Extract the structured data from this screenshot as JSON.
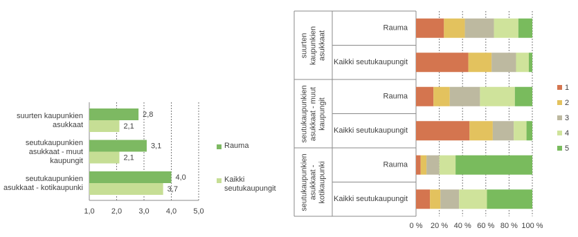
{
  "chart_data": [
    {
      "type": "hbar",
      "categories": [
        "suurten kaupunkien asukkaat",
        "seutukaupunkien asukkaat - muut kaupungit",
        "seutukaupunkien asukkaat - kotikaupunki"
      ],
      "series": [
        {
          "name": "Rauma",
          "color": "#7db962",
          "values": [
            2.8,
            3.1,
            4.0
          ],
          "value_labels": [
            "2,8",
            "3,1",
            "4,0"
          ]
        },
        {
          "name": "Kaikki seutukaupungit",
          "color": "#c6de95",
          "values": [
            2.1,
            2.1,
            3.7
          ],
          "value_labels": [
            "2,1",
            "2,1",
            "3,7"
          ]
        }
      ],
      "xlim": [
        1,
        5
      ],
      "xticks": [
        {
          "value": 1,
          "label": "1,0"
        },
        {
          "value": 2,
          "label": "2,0"
        },
        {
          "value": 3,
          "label": "3,0"
        },
        {
          "value": 4,
          "label": "4,0"
        },
        {
          "value": 5,
          "label": "5,0"
        }
      ],
      "grid": true,
      "legend": "right"
    },
    {
      "type": "stacked-hbar",
      "groups": [
        "suurten kaupunkien asukkaat",
        "seutukaupunkien asukkaat - muut kaupungit",
        "seutukaupunkien asukkaat - kotikaupunki"
      ],
      "categories": [
        "Rauma",
        "Kaikki seutukaupungit",
        "Rauma",
        "Kaikki seutukaupungit",
        "Rauma",
        "Kaikki seutukaupungit"
      ],
      "series": [
        {
          "name": "1",
          "color": "#d4754f",
          "values": [
            24,
            45,
            15,
            46,
            4,
            12
          ]
        },
        {
          "name": "2",
          "color": "#e3c25e",
          "values": [
            18,
            20,
            14,
            20,
            5,
            9
          ]
        },
        {
          "name": "3",
          "color": "#bdb9a0",
          "values": [
            25,
            21,
            26,
            18,
            11,
            16
          ]
        },
        {
          "name": "4",
          "color": "#cfe39b",
          "values": [
            21,
            11,
            30,
            11,
            14,
            24
          ]
        },
        {
          "name": "5",
          "color": "#79bb5d",
          "values": [
            12,
            3,
            15,
            5,
            66,
            39
          ]
        }
      ],
      "xlim": [
        0,
        100
      ],
      "xticks": [
        {
          "value": 0,
          "label": "0 %"
        },
        {
          "value": 20,
          "label": "20 %"
        },
        {
          "value": 40,
          "label": "40 %"
        },
        {
          "value": 60,
          "label": "60 %"
        },
        {
          "value": 80,
          "label": "80 %"
        },
        {
          "value": 100,
          "label": "100 %"
        }
      ],
      "grid": true,
      "legend": "right"
    }
  ]
}
